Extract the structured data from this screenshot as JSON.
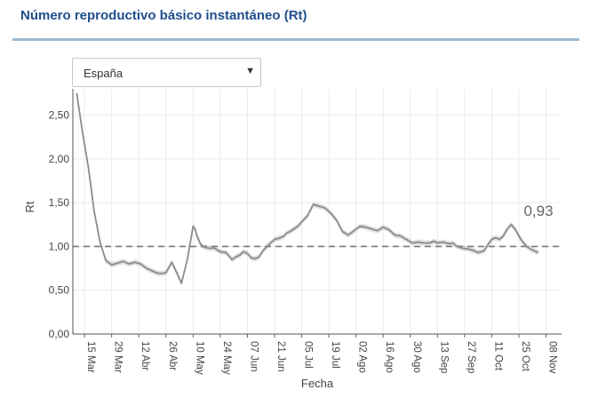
{
  "header": {
    "title": "Número reproductivo básico instantáneo (Rt)"
  },
  "selector": {
    "selected": "España",
    "caret": "▼"
  },
  "chart_data": {
    "type": "line",
    "title": "Número reproductivo básico instantáneo (Rt)",
    "xlabel": "Fecha",
    "ylabel": "Rt",
    "ylim": [
      0,
      2.8
    ],
    "y_ticks": [
      "0,00",
      "0,50",
      "1,00",
      "1,50",
      "2,00",
      "2,50"
    ],
    "y_tick_values": [
      0,
      0.5,
      1.0,
      1.5,
      2.0,
      2.5
    ],
    "x_ticks": [
      "15 Mar",
      "29 Mar",
      "12 Abr",
      "26 Abr",
      "10 May",
      "24 May",
      "07 Jun",
      "21 Jun",
      "05 Jul",
      "19 Jul",
      "02 Ago",
      "16 Ago",
      "30 Ago",
      "13 Sep",
      "27 Sep",
      "11 Oct",
      "25 Oct",
      "08 Nov"
    ],
    "x_range_days": [
      -6,
      246
    ],
    "reference_line": 1.0,
    "last_value_label": "0,93",
    "grid": true,
    "series": [
      {
        "x_days": [
          -4,
          -3,
          -1,
          2,
          5,
          8,
          11,
          14,
          17,
          20,
          23,
          26,
          29,
          32,
          35,
          37,
          39,
          42,
          45,
          48,
          50,
          53,
          55,
          56,
          57,
          58,
          60,
          62,
          64,
          67,
          70,
          73,
          75,
          76,
          78,
          80,
          82,
          84,
          86,
          88,
          90,
          92,
          95,
          98,
          101,
          103,
          104,
          106,
          108,
          110,
          112,
          115,
          118,
          121,
          124,
          127,
          130,
          133,
          136,
          139,
          142,
          145,
          148,
          151,
          154,
          157,
          160,
          163,
          166,
          169,
          172,
          175,
          178,
          180,
          182,
          185,
          188,
          190,
          192,
          195,
          198,
          201,
          203,
          206,
          208,
          210,
          212,
          214,
          216,
          218,
          220,
          222,
          224,
          226,
          228,
          230,
          232,
          234
        ],
        "values": [
          2.75,
          2.6,
          2.3,
          1.9,
          1.4,
          1.05,
          0.84,
          0.79,
          0.81,
          0.83,
          0.8,
          0.82,
          0.8,
          0.75,
          0.72,
          0.7,
          0.69,
          0.7,
          0.82,
          0.68,
          0.58,
          0.85,
          1.1,
          1.23,
          1.2,
          1.12,
          1.02,
          0.99,
          0.98,
          0.98,
          0.94,
          0.93,
          0.88,
          0.85,
          0.88,
          0.9,
          0.94,
          0.92,
          0.87,
          0.86,
          0.88,
          0.95,
          1.02,
          1.08,
          1.1,
          1.12,
          1.15,
          1.17,
          1.2,
          1.23,
          1.28,
          1.35,
          1.48,
          1.46,
          1.44,
          1.38,
          1.3,
          1.17,
          1.13,
          1.18,
          1.23,
          1.22,
          1.2,
          1.18,
          1.22,
          1.19,
          1.13,
          1.12,
          1.08,
          1.04,
          1.05,
          1.04,
          1.04,
          1.06,
          1.04,
          1.05,
          1.03,
          1.04,
          1.0,
          0.98,
          0.97,
          0.95,
          0.93,
          0.95,
          1.02,
          1.08,
          1.1,
          1.08,
          1.12,
          1.2,
          1.25,
          1.2,
          1.12,
          1.05,
          1.0,
          0.97,
          0.95,
          0.93
        ],
        "color": "#8c8c8c"
      }
    ],
    "colors": {
      "line": "#8c8c8c",
      "band": "#c4c4c4",
      "reference": "#777777",
      "grid": "#ebebeb"
    }
  }
}
